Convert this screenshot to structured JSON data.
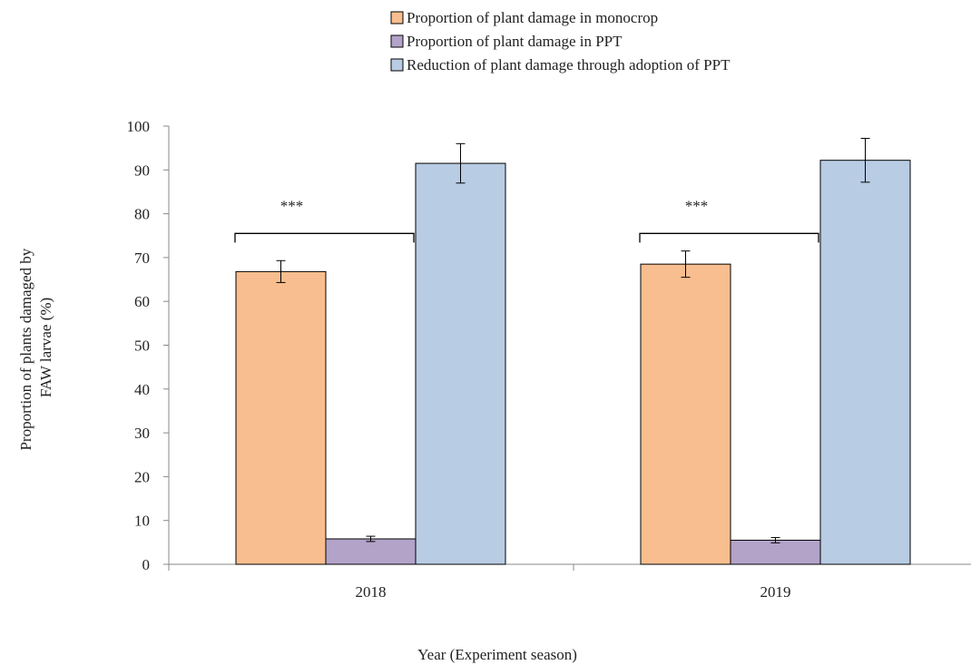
{
  "chart_data": {
    "type": "bar",
    "categories": [
      "2018",
      "2019"
    ],
    "series": [
      {
        "name": "Proportion of plant damage in monocrop",
        "values": [
          66.8,
          68.5
        ],
        "errors": [
          2.5,
          3.0
        ],
        "color": "#f9be8f"
      },
      {
        "name": "Proportion of plant damage in PPT",
        "values": [
          5.8,
          5.5
        ],
        "errors": [
          0.6,
          0.6
        ],
        "color": "#b3a3c9"
      },
      {
        "name": "Reduction of plant damage through adoption of PPT",
        "values": [
          91.5,
          92.2
        ],
        "errors": [
          4.5,
          5.0
        ],
        "color": "#b8cce4"
      }
    ],
    "xlabel": "Year (Experiment  season)",
    "ylabel_lines": [
      "Proportion of plants damaged by",
      "FAW larvae  (%)"
    ],
    "ylim": [
      0,
      100
    ],
    "yticks": [
      0,
      10,
      20,
      30,
      40,
      50,
      60,
      70,
      80,
      90,
      100
    ],
    "grid": false,
    "legend_position": "top-center",
    "annotations": [
      {
        "text": "***",
        "category": "2018",
        "bracket_from": 0,
        "bracket_to": 1,
        "bracket_value": 75.5
      },
      {
        "text": "***",
        "category": "2019",
        "bracket_from": 0,
        "bracket_to": 1,
        "bracket_value": 75.5
      }
    ]
  }
}
